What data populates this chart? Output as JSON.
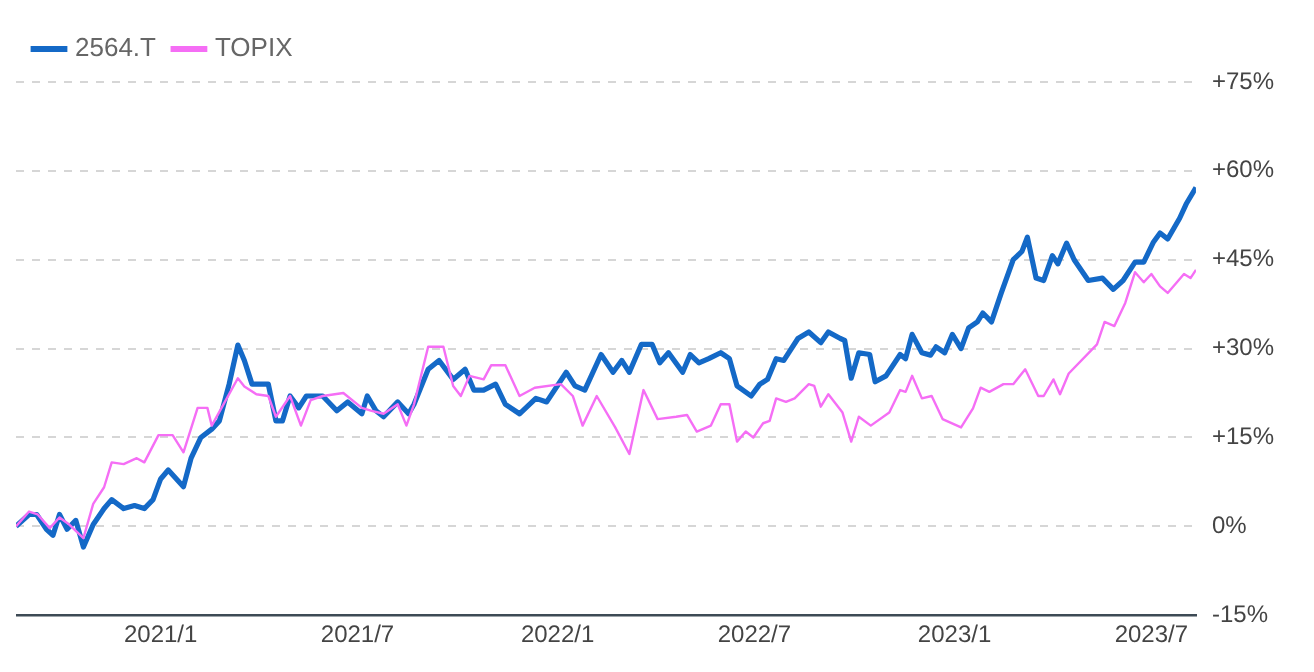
{
  "chart_data": {
    "type": "line",
    "xlim": [
      "2020-08-21",
      "2023-08-11"
    ],
    "xticks": [
      {
        "value": "2021-01-01",
        "label": "2021/1"
      },
      {
        "value": "2021-07-01",
        "label": "2021/7"
      },
      {
        "value": "2022-01-01",
        "label": "2022/1"
      },
      {
        "value": "2022-07-01",
        "label": "2022/7"
      },
      {
        "value": "2023-01-01",
        "label": "2023/1"
      },
      {
        "value": "2023-07-01",
        "label": "2023/7"
      }
    ],
    "ylim": [
      -15,
      75
    ],
    "yticks": [
      {
        "value": -15,
        "label": "-15%"
      },
      {
        "value": 0,
        "label": "0%"
      },
      {
        "value": 15,
        "label": "+15%"
      },
      {
        "value": 30,
        "label": "+30%"
      },
      {
        "value": 45,
        "label": "+45%"
      },
      {
        "value": 60,
        "label": "+60%"
      },
      {
        "value": 75,
        "label": "+75%"
      }
    ],
    "grid": "y",
    "legend": "top left",
    "marker": "none",
    "line_style": "solid",
    "series": [
      {
        "name": "2564.T",
        "color": "#1469c7",
        "x": [
          "2020-08-21",
          "2020-09-02",
          "2020-09-09",
          "2020-09-18",
          "2020-09-24",
          "2020-09-30",
          "2020-10-07",
          "2020-10-15",
          "2020-10-22",
          "2020-10-31",
          "2020-11-10",
          "2020-11-17",
          "2020-11-28",
          "2020-12-08",
          "2020-12-17",
          "2020-12-25",
          "2021-01-01",
          "2021-01-08",
          "2021-01-22",
          "2021-01-29",
          "2021-02-07",
          "2021-02-17",
          "2021-02-24",
          "2021-03-05",
          "2021-03-13",
          "2021-03-19",
          "2021-03-26",
          "2021-04-10",
          "2021-04-17",
          "2021-04-23",
          "2021-04-30",
          "2021-05-08",
          "2021-05-15",
          "2021-05-30",
          "2021-06-12",
          "2021-06-22",
          "2021-07-05",
          "2021-07-10",
          "2021-07-18",
          "2021-07-25",
          "2021-08-07",
          "2021-08-17",
          "2021-08-22",
          "2021-09-04",
          "2021-09-14",
          "2021-09-27",
          "2021-10-08",
          "2021-10-16",
          "2021-10-25",
          "2021-11-05",
          "2021-11-14",
          "2021-11-27",
          "2021-12-12",
          "2021-12-22",
          "2022-01-09",
          "2022-01-17",
          "2022-01-26",
          "2022-02-10",
          "2022-02-21",
          "2022-03-01",
          "2022-03-08",
          "2022-03-19",
          "2022-03-29",
          "2022-04-05",
          "2022-04-13",
          "2022-04-26",
          "2022-05-03",
          "2022-05-11",
          "2022-05-20",
          "2022-05-31",
          "2022-06-08",
          "2022-06-15",
          "2022-06-28",
          "2022-07-06",
          "2022-07-13",
          "2022-07-21",
          "2022-07-28",
          "2022-08-10",
          "2022-08-20",
          "2022-08-31",
          "2022-09-07",
          "2022-09-18",
          "2022-09-22",
          "2022-09-28",
          "2022-10-05",
          "2022-10-15",
          "2022-10-20",
          "2022-10-30",
          "2022-11-12",
          "2022-11-17",
          "2022-11-23",
          "2022-12-02",
          "2022-12-10",
          "2022-12-15",
          "2022-12-23",
          "2022-12-30",
          "2023-01-07",
          "2023-01-14",
          "2023-01-22",
          "2023-01-27",
          "2023-02-04",
          "2023-02-13",
          "2023-02-24",
          "2023-03-04",
          "2023-03-09",
          "2023-03-17",
          "2023-03-24",
          "2023-04-01",
          "2023-04-06",
          "2023-04-14",
          "2023-04-21",
          "2023-05-04",
          "2023-05-17",
          "2023-05-27",
          "2023-06-05",
          "2023-06-16",
          "2023-06-24",
          "2023-07-03",
          "2023-07-09",
          "2023-07-16",
          "2023-07-27",
          "2023-08-02",
          "2023-08-11"
        ],
        "values": [
          0,
          2,
          2,
          -0.5,
          -1.5,
          2,
          -0.5,
          1,
          -3.5,
          0.3,
          3,
          4.5,
          3,
          3.5,
          3,
          4.5,
          8,
          9.5,
          6.7,
          11.5,
          15,
          16.4,
          17.8,
          24,
          30.6,
          28,
          24,
          24,
          17.8,
          17.8,
          22,
          20,
          22,
          22,
          19.5,
          21,
          19,
          22,
          19.5,
          18.5,
          21,
          19,
          20.6,
          26.5,
          28,
          24.8,
          26.5,
          23,
          23,
          24,
          20.6,
          19,
          21.6,
          21,
          26,
          23.7,
          23,
          29,
          26,
          28,
          26,
          30.7,
          30.7,
          27.6,
          29.3,
          26,
          29,
          27.6,
          28.3,
          29.3,
          28.3,
          23.7,
          22,
          24,
          24.8,
          28.3,
          28,
          31.7,
          32.8,
          31,
          32.8,
          31.7,
          31.4,
          25,
          29.3,
          29,
          24.4,
          25.4,
          29,
          28.3,
          32.4,
          29.3,
          28.9,
          30.3,
          29.3,
          32.4,
          30,
          33.5,
          34.5,
          36,
          34.5,
          39.4,
          45,
          46.4,
          48.8,
          41.9,
          41.5,
          45.7,
          44.3,
          47.8,
          45,
          41.5,
          41.9,
          40,
          41.5,
          44.6,
          44.6,
          48,
          49.5,
          48.5,
          52,
          54.4,
          57.2
        ]
      },
      {
        "name": "TOPIX",
        "color": "#f56ef5",
        "x": [
          "2020-08-21",
          "2020-09-02",
          "2020-09-10",
          "2020-09-21",
          "2020-09-30",
          "2020-10-09",
          "2020-10-22",
          "2020-10-31",
          "2020-11-10",
          "2020-11-17",
          "2020-11-28",
          "2020-12-10",
          "2020-12-17",
          "2020-12-30",
          "2021-01-12",
          "2021-01-22",
          "2021-02-04",
          "2021-02-13",
          "2021-02-17",
          "2021-02-26",
          "2021-03-13",
          "2021-03-19",
          "2021-03-30",
          "2021-04-10",
          "2021-04-17",
          "2021-04-30",
          "2021-05-10",
          "2021-05-19",
          "2021-05-30",
          "2021-06-18",
          "2021-07-05",
          "2021-07-14",
          "2021-07-25",
          "2021-08-07",
          "2021-08-15",
          "2021-08-22",
          "2021-09-04",
          "2021-09-18",
          "2021-09-27",
          "2021-10-04",
          "2021-10-12",
          "2021-10-25",
          "2021-11-01",
          "2021-11-14",
          "2021-11-27",
          "2021-12-11",
          "2022-01-04",
          "2022-01-15",
          "2022-01-24",
          "2022-02-06",
          "2022-02-23",
          "2022-03-08",
          "2022-03-21",
          "2022-04-03",
          "2022-04-20",
          "2022-04-30",
          "2022-05-09",
          "2022-05-22",
          "2022-05-31",
          "2022-06-08",
          "2022-06-15",
          "2022-06-23",
          "2022-06-30",
          "2022-07-09",
          "2022-07-15",
          "2022-07-21",
          "2022-07-30",
          "2022-08-07",
          "2022-08-20",
          "2022-08-25",
          "2022-08-31",
          "2022-09-07",
          "2022-09-20",
          "2022-09-28",
          "2022-10-05",
          "2022-10-16",
          "2022-11-02",
          "2022-11-12",
          "2022-11-17",
          "2022-11-23",
          "2022-12-02",
          "2022-12-11",
          "2022-12-21",
          "2023-01-07",
          "2023-01-18",
          "2023-01-25",
          "2023-02-02",
          "2023-02-15",
          "2023-02-24",
          "2023-03-07",
          "2023-03-19",
          "2023-03-24",
          "2023-04-02",
          "2023-04-08",
          "2023-04-16",
          "2023-05-12",
          "2023-05-19",
          "2023-05-28",
          "2023-06-07",
          "2023-06-16",
          "2023-06-24",
          "2023-07-01",
          "2023-07-09",
          "2023-07-16",
          "2023-07-31",
          "2023-08-06",
          "2023-08-11"
        ],
        "values": [
          0,
          2.5,
          2,
          -0.3,
          1.5,
          0.3,
          -2,
          3.8,
          6.6,
          10.8,
          10.5,
          11.5,
          10.8,
          15.4,
          15.4,
          12.5,
          20,
          20,
          17,
          20,
          25,
          23.6,
          22.3,
          22,
          18.5,
          22,
          17,
          21.3,
          22,
          22.5,
          20,
          19.5,
          19,
          20.6,
          17,
          20.6,
          30.3,
          30.3,
          23.7,
          22,
          25.4,
          24.8,
          27.2,
          27.2,
          22,
          23.4,
          24,
          22,
          17,
          22,
          16.7,
          12.2,
          23,
          18.1,
          18.5,
          18.8,
          16,
          17,
          20.6,
          20.6,
          14.3,
          16,
          15,
          17.4,
          17.8,
          21.6,
          21,
          21.6,
          24,
          23.7,
          20.2,
          22.3,
          19.2,
          14.3,
          18.5,
          17,
          19.2,
          23,
          22.7,
          25.4,
          21.6,
          22,
          18.1,
          16.7,
          19.9,
          23.4,
          22.7,
          24,
          24,
          26.5,
          22,
          22,
          24.8,
          22.3,
          25.8,
          30.7,
          34.5,
          33.8,
          37.7,
          42.9,
          41.2,
          42.6,
          40.5,
          39.4,
          42.6,
          41.9,
          43.3
        ]
      }
    ]
  }
}
